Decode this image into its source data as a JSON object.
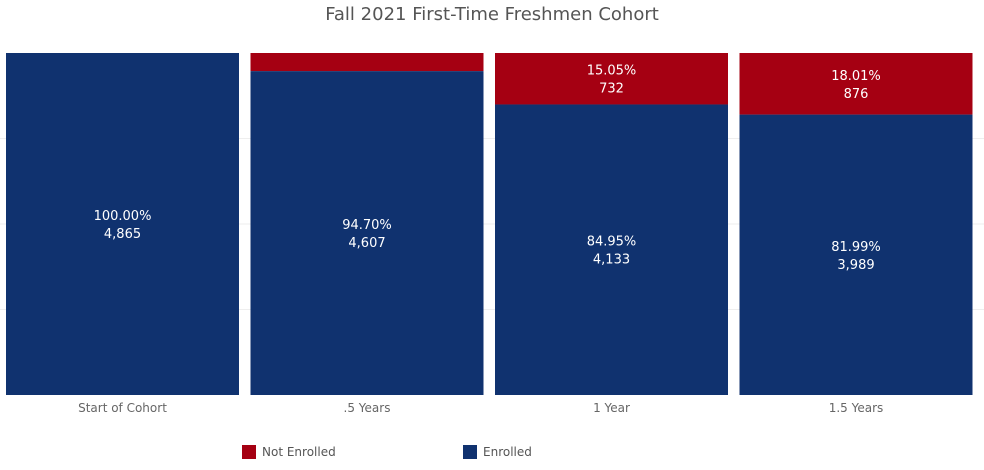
{
  "chart_data": {
    "type": "bar",
    "stacked": true,
    "normalized": true,
    "title": "Fall 2021 First-Time Freshmen Cohort",
    "categories": [
      "Start of Cohort",
      ".5 Years",
      "1 Year",
      "1.5 Years"
    ],
    "ylim": [
      0,
      100
    ],
    "series": [
      {
        "name": "Enrolled",
        "color": "#10326f",
        "percents": [
          100.0,
          94.7,
          84.95,
          81.99
        ],
        "pct_labels": [
          "100.00%",
          "94.70%",
          "84.95%",
          "81.99%"
        ],
        "count_labels": [
          "4,865",
          "4,607",
          "4,133",
          "3,989"
        ]
      },
      {
        "name": "Not Enrolled",
        "color": "#a50012",
        "percents": [
          0,
          5.3,
          15.05,
          18.01
        ],
        "pct_labels": [
          "",
          "",
          "15.05%",
          "18.01%"
        ],
        "count_labels": [
          "",
          "",
          "732",
          "876"
        ]
      }
    ],
    "legend_position": "bottom"
  }
}
